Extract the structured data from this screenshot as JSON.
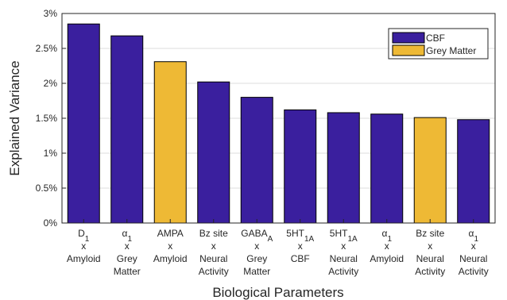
{
  "chart_data": {
    "type": "bar",
    "xlabel": "Biological Parameters",
    "ylabel": "Explained Variance",
    "ylim": [
      0,
      3
    ],
    "yticks": [
      "0%",
      "0.5%",
      "1%",
      "1.5%",
      "2%",
      "2.5%",
      "3%"
    ],
    "grid": true,
    "legend_position": "top-right",
    "legend": [
      {
        "name": "CBF",
        "color": "#3a1f9e"
      },
      {
        "name": "Grey Matter",
        "color": "#eeb935"
      }
    ],
    "categories": [
      [
        "D1",
        "x",
        "Amyloid"
      ],
      [
        "α1",
        "x",
        "Grey",
        "Matter"
      ],
      [
        "AMPA",
        "x",
        "Amyloid"
      ],
      [
        "Bz site",
        "x",
        "Neural",
        "Activity"
      ],
      [
        "GABAA",
        "x",
        "Grey",
        "Matter"
      ],
      [
        "5HT1A",
        "x",
        "CBF"
      ],
      [
        "5HT1A",
        "x",
        "Neural",
        "Activity"
      ],
      [
        "α1",
        "x",
        "Amyloid"
      ],
      [
        "Bz site",
        "x",
        "Neural",
        "Activity"
      ],
      [
        "α1",
        "x",
        "Neural",
        "Activity"
      ]
    ],
    "values": [
      2.85,
      2.68,
      2.31,
      2.02,
      1.8,
      1.62,
      1.58,
      1.56,
      1.51,
      1.48
    ],
    "groups": [
      "CBF",
      "CBF",
      "Grey Matter",
      "CBF",
      "CBF",
      "CBF",
      "CBF",
      "CBF",
      "Grey Matter",
      "CBF"
    ]
  }
}
